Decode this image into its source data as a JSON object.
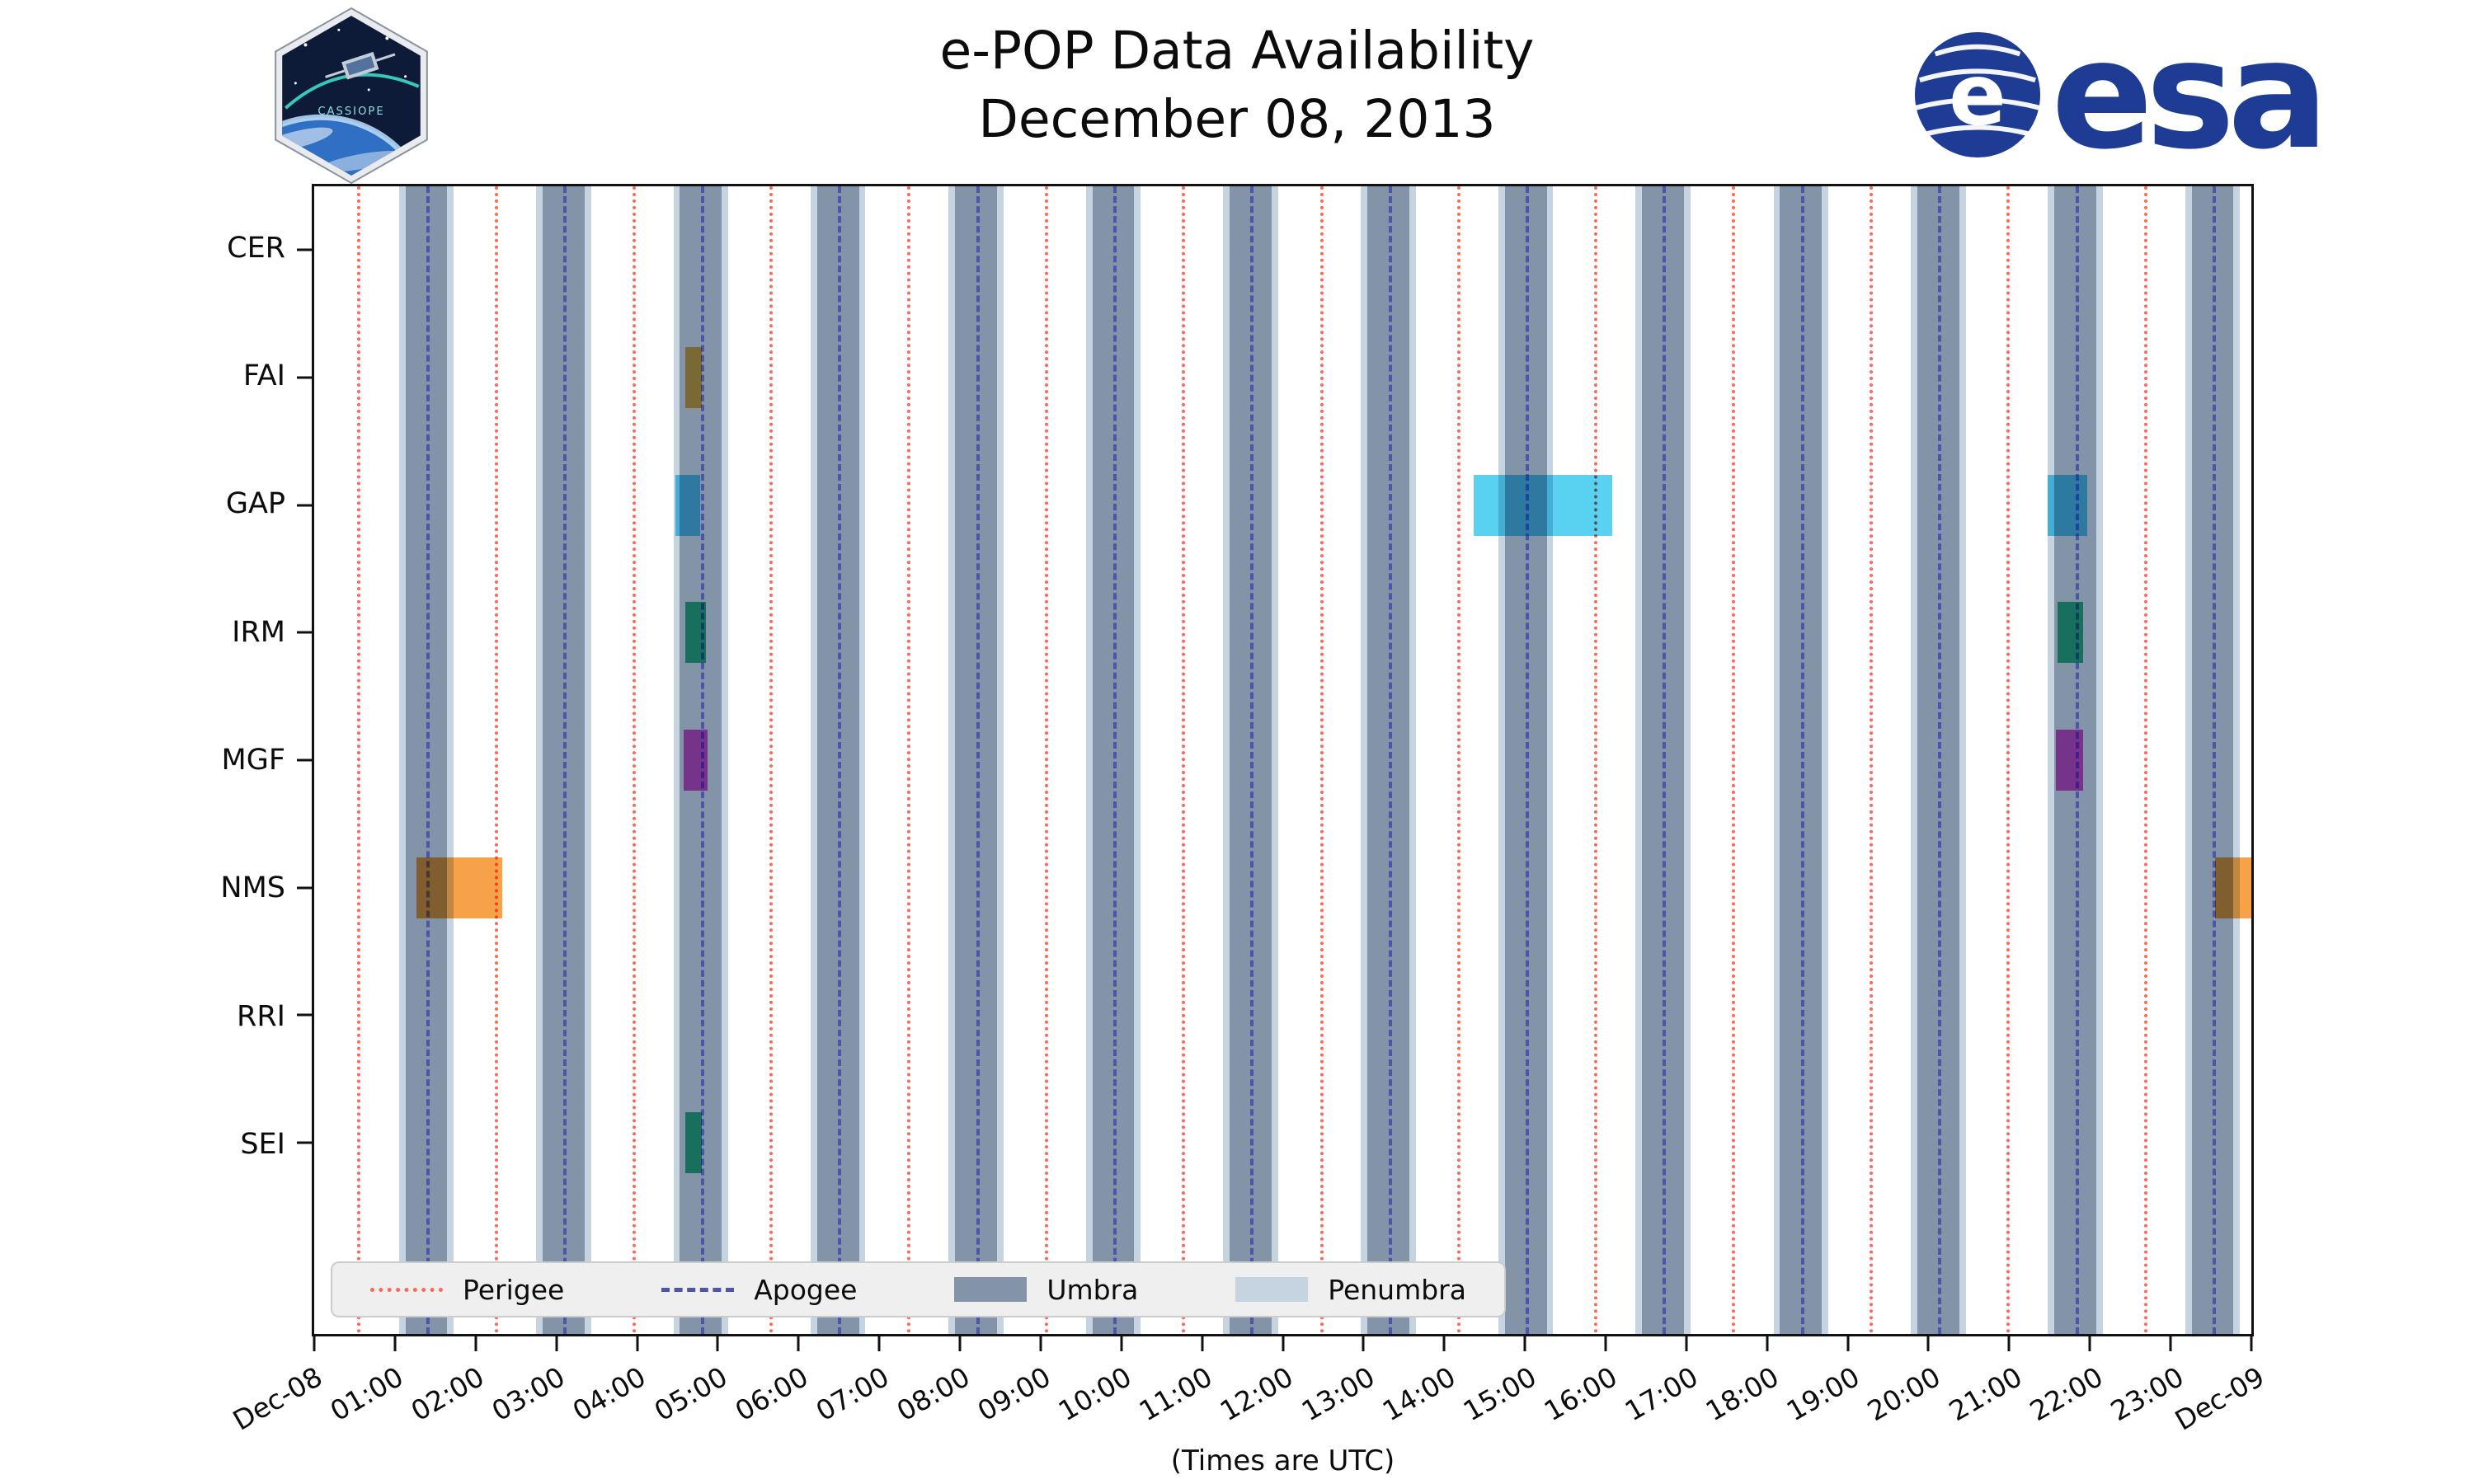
{
  "header": {
    "title_line1": "e-POP Data Availability",
    "title_line2": "December 08, 2013"
  },
  "logos": {
    "cassiope_text": "CASSIOPE",
    "esa_text": "esa",
    "esa_globe_letter": "e"
  },
  "axis": {
    "x_label": "(Times are UTC)"
  },
  "legend": {
    "perigee_label": "Perigee",
    "apogee_label": "Apogee",
    "umbra_label": "Umbra",
    "penumbra_label": "Penumbra"
  },
  "colors": {
    "umbra": "#8494a8",
    "penumbra": "#c6d4e2",
    "perigee": "#fc685a",
    "apogee": "#4c55a8",
    "esa_blue": "#1e3c94",
    "legend_bg": "#efefef",
    "legend_border": "#cccccc",
    "axis_ink": "#111111"
  },
  "chart_data": {
    "type": "bar",
    "subtype": "timeline (broken_barh data-availability chart)",
    "title": "e-POP Data Availability",
    "subtitle": "December 08, 2013",
    "x_label": "(Times are UTC)",
    "x_range_hours": [
      0,
      24
    ],
    "x_tick_interval_hours": 1,
    "x_tick_labels": [
      "Dec-08",
      "01:00",
      "02:00",
      "03:00",
      "04:00",
      "05:00",
      "06:00",
      "07:00",
      "08:00",
      "09:00",
      "10:00",
      "11:00",
      "12:00",
      "13:00",
      "14:00",
      "15:00",
      "16:00",
      "17:00",
      "18:00",
      "19:00",
      "20:00",
      "21:00",
      "22:00",
      "23:00",
      "Dec-09"
    ],
    "instruments": [
      "CER",
      "FAI",
      "GAP",
      "IRM",
      "MGF",
      "NMS",
      "RRI",
      "SEI"
    ],
    "availability": [
      {
        "instrument": "FAI",
        "start": "04:36",
        "end": "04:48",
        "start_h": 4.6,
        "end_h": 4.8,
        "color": "#ecb44e"
      },
      {
        "instrument": "GAP",
        "start": "04:28",
        "end": "04:47",
        "start_h": 4.47,
        "end_h": 4.78,
        "color": "#59d1f1"
      },
      {
        "instrument": "GAP",
        "start": "14:22",
        "end": "16:05",
        "start_h": 14.37,
        "end_h": 16.08,
        "color": "#59d1f1"
      },
      {
        "instrument": "GAP",
        "start": "21:29",
        "end": "21:58",
        "start_h": 21.48,
        "end_h": 21.97,
        "color": "#59d1f1"
      },
      {
        "instrument": "IRM",
        "start": "04:36",
        "end": "04:51",
        "start_h": 4.6,
        "end_h": 4.85,
        "color": "#2fc08f"
      },
      {
        "instrument": "IRM",
        "start": "21:36",
        "end": "21:55",
        "start_h": 21.6,
        "end_h": 21.92,
        "color": "#2fc08f"
      },
      {
        "instrument": "MGF",
        "start": "04:35",
        "end": "04:52",
        "start_h": 4.58,
        "end_h": 4.87,
        "color": "#e358d2"
      },
      {
        "instrument": "MGF",
        "start": "21:35",
        "end": "21:55",
        "start_h": 21.58,
        "end_h": 21.92,
        "color": "#e358d2"
      },
      {
        "instrument": "NMS",
        "start": "01:16",
        "end": "02:20",
        "start_h": 1.27,
        "end_h": 2.33,
        "color": "#f7a249"
      },
      {
        "instrument": "NMS",
        "start": "23:33",
        "end": "24:00",
        "start_h": 23.55,
        "end_h": 24.0,
        "color": "#f7a249"
      },
      {
        "instrument": "SEI",
        "start": "04:36",
        "end": "04:48",
        "start_h": 4.6,
        "end_h": 4.8,
        "color": "#2fc08f"
      }
    ],
    "perigee_hours": [
      0.53,
      2.24,
      3.94,
      5.64,
      7.35,
      9.05,
      10.75,
      12.46,
      14.16,
      15.86,
      17.56,
      19.27,
      20.97,
      22.67
    ],
    "apogee_hours": [
      1.39,
      3.09,
      4.79,
      6.49,
      8.2,
      9.9,
      11.6,
      13.31,
      15.01,
      16.71,
      18.42,
      20.12,
      21.82,
      23.52
    ],
    "umbra_intervals_hours": [
      [
        1.13,
        1.65
      ],
      [
        2.83,
        3.35
      ],
      [
        4.53,
        5.05
      ],
      [
        6.23,
        6.75
      ],
      [
        7.94,
        8.46
      ],
      [
        9.64,
        10.16
      ],
      [
        11.34,
        11.86
      ],
      [
        13.05,
        13.57
      ],
      [
        14.75,
        15.27
      ],
      [
        16.45,
        16.97
      ],
      [
        18.16,
        18.68
      ],
      [
        19.86,
        20.38
      ],
      [
        21.56,
        22.08
      ],
      [
        23.26,
        23.78
      ]
    ],
    "penumbra_edge_hours": 0.08,
    "legend_entries": [
      "Perigee",
      "Apogee",
      "Umbra",
      "Penumbra"
    ],
    "legend_position": "bottom-left inside plot",
    "grid": false
  }
}
